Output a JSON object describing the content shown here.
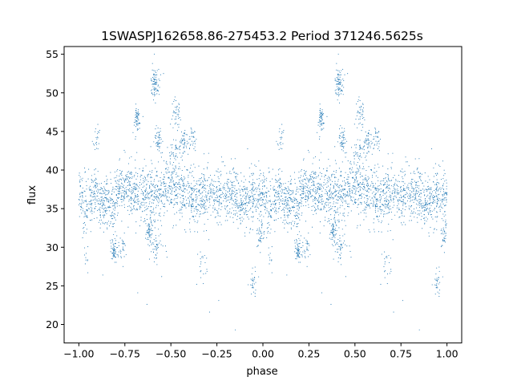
{
  "chart_data": {
    "type": "scatter",
    "title": "1SWASPJ162658.86-275453.2 Period 371246.5625s",
    "xlabel": "phase",
    "ylabel": "flux",
    "xlim": [
      -1.08,
      1.08
    ],
    "ylim": [
      17.6,
      56.0
    ],
    "xticks": [
      -1.0,
      -0.75,
      -0.5,
      -0.25,
      0.0,
      0.25,
      0.5,
      0.75,
      1.0
    ],
    "xtick_labels": [
      "−1.00",
      "−0.75",
      "−0.50",
      "−0.25",
      "0.00",
      "0.25",
      "0.50",
      "0.75",
      "1.00"
    ],
    "yticks": [
      20,
      25,
      30,
      35,
      40,
      45,
      50,
      55
    ],
    "ytick_labels": [
      "20",
      "25",
      "30",
      "35",
      "40",
      "45",
      "50",
      "55"
    ],
    "grid": false,
    "marker_color": "#1f77b4",
    "folding": "phase in [0,1] repeated at phase-1",
    "series": [
      {
        "profile_phase": [
          0.0,
          0.03,
          0.06,
          0.09,
          0.12,
          0.15,
          0.18,
          0.21,
          0.24,
          0.27,
          0.3,
          0.33,
          0.36,
          0.39,
          0.42,
          0.45,
          0.48,
          0.51,
          0.54,
          0.57,
          0.6,
          0.63,
          0.66,
          0.69,
          0.72,
          0.75,
          0.78,
          0.81,
          0.84,
          0.87,
          0.9,
          0.93,
          0.96,
          0.99
        ],
        "profile_flux": [
          36.8,
          35.5,
          36.2,
          37.0,
          35.8,
          36.0,
          35.5,
          36.8,
          38.0,
          37.5,
          36.9,
          36.5,
          37.0,
          37.2,
          36.8,
          37.0,
          37.5,
          37.8,
          38.0,
          37.2,
          36.5,
          35.8,
          36.5,
          37.0,
          36.8,
          36.0,
          36.5,
          37.2,
          37.5,
          35.5,
          36.2,
          36.0,
          36.5,
          36.8
        ],
        "scatter_spread": 1.7,
        "clusters": [
          {
            "phase": 0.415,
            "flux": 51.3,
            "count": 80
          },
          {
            "phase": 0.315,
            "flux": 46.4,
            "count": 60
          },
          {
            "phase": 0.53,
            "flux": 47.5,
            "count": 40
          },
          {
            "phase": 0.435,
            "flux": 44.0,
            "count": 50
          },
          {
            "phase": 0.57,
            "flux": 43.5,
            "count": 45
          },
          {
            "phase": 0.62,
            "flux": 44.2,
            "count": 30
          },
          {
            "phase": 0.52,
            "flux": 42.5,
            "count": 40
          },
          {
            "phase": 0.19,
            "flux": 29.5,
            "count": 60
          },
          {
            "phase": 0.385,
            "flux": 32.0,
            "count": 60
          },
          {
            "phase": 0.42,
            "flux": 30.0,
            "count": 40
          },
          {
            "phase": 0.985,
            "flux": 31.5,
            "count": 40
          },
          {
            "phase": 0.95,
            "flux": 25.5,
            "count": 30
          },
          {
            "phase": 0.235,
            "flux": 30.0,
            "count": 25
          },
          {
            "phase": 0.67,
            "flux": 27.5,
            "count": 20
          },
          {
            "phase": 0.1,
            "flux": 44.5,
            "count": 20
          },
          {
            "phase": 0.04,
            "flux": 28.5,
            "count": 10
          }
        ],
        "outliers": [
          {
            "phase": 0.85,
            "flux": 19.3
          },
          {
            "phase": 0.37,
            "flux": 22.6
          },
          {
            "phase": 0.71,
            "flux": 21.6
          },
          {
            "phase": 0.76,
            "flux": 23.1
          },
          {
            "phase": 0.32,
            "flux": 24.1
          },
          {
            "phase": 0.45,
            "flux": 26.2
          },
          {
            "phase": 0.13,
            "flux": 26.4
          },
          {
            "phase": 0.64,
            "flux": 25.2
          },
          {
            "phase": 0.24,
            "flux": 27.5
          },
          {
            "phase": 0.46,
            "flux": 52.5
          },
          {
            "phase": 0.4,
            "flux": 53.8
          },
          {
            "phase": 0.41,
            "flux": 55.0
          }
        ]
      }
    ]
  }
}
